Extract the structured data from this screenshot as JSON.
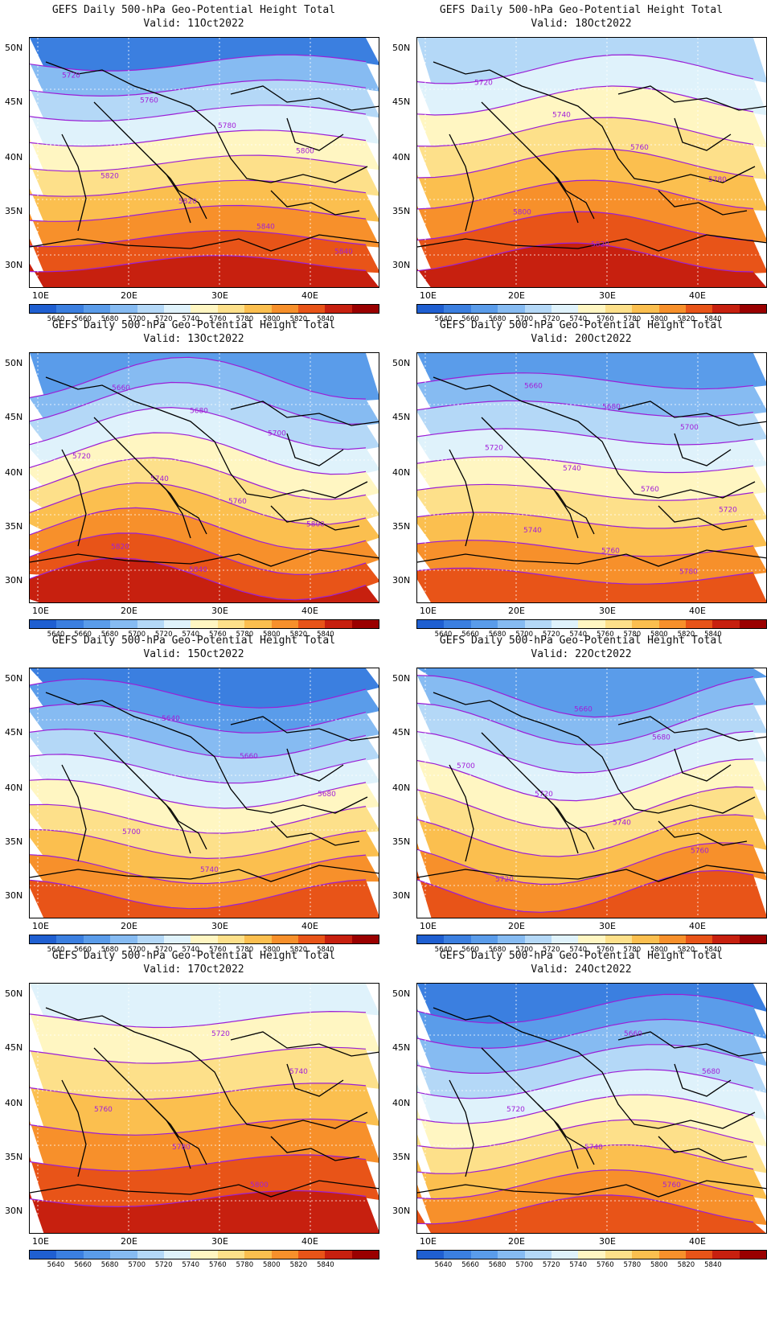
{
  "panels": [
    {
      "title": "GEFS Daily 500-hPa Geo-Potential Height Total",
      "valid": "Valid: 11Oct2022",
      "bands": [
        5640,
        5680,
        5700,
        5720,
        5740,
        5760,
        5780,
        5800,
        5820,
        5840
      ],
      "labels": [
        "5720",
        "5760",
        "5780",
        "5800",
        "5820",
        "5820",
        "5840",
        "5840"
      ]
    },
    {
      "title": "GEFS Daily 500-hPa Geo-Potential Height Total",
      "valid": "Valid: 18Oct2022",
      "bands": [
        5700,
        5720,
        5740,
        5760,
        5780,
        5800,
        5820,
        5840
      ],
      "labels": [
        "5720",
        "5740",
        "5760",
        "5780",
        "5800",
        "5820"
      ]
    },
    {
      "title": "GEFS Daily 500-hPa Geo-Potential Height Total",
      "valid": "Valid: 13Oct2022",
      "bands": [
        5660,
        5680,
        5700,
        5720,
        5740,
        5760,
        5780,
        5800,
        5820,
        5840
      ],
      "labels": [
        "5660",
        "5680",
        "5700",
        "5720",
        "5740",
        "5760",
        "5800",
        "5820",
        "5840"
      ]
    },
    {
      "title": "GEFS Daily 500-hPa Geo-Potential Height Total",
      "valid": "Valid: 20Oct2022",
      "bands": [
        5660,
        5680,
        5700,
        5720,
        5740,
        5760,
        5780,
        5800,
        5820
      ],
      "labels": [
        "5660",
        "5680",
        "5700",
        "5720",
        "5740",
        "5760",
        "5720",
        "5740",
        "5760",
        "5780"
      ]
    },
    {
      "title": "GEFS Daily 500-hPa Geo-Potential Height Total",
      "valid": "Valid: 15Oct2022",
      "bands": [
        5640,
        5660,
        5680,
        5700,
        5720,
        5740,
        5760,
        5780,
        5800,
        5820
      ],
      "labels": [
        "5640",
        "5660",
        "5680",
        "5700",
        "5740"
      ]
    },
    {
      "title": "GEFS Daily 500-hPa Geo-Potential Height Total",
      "valid": "Valid: 22Oct2022",
      "bands": [
        5660,
        5680,
        5700,
        5720,
        5740,
        5760,
        5780,
        5800,
        5820
      ],
      "labels": [
        "5660",
        "5680",
        "5700",
        "5720",
        "5740",
        "5760",
        "5720"
      ]
    },
    {
      "title": "GEFS Daily 500-hPa Geo-Potential Height Total",
      "valid": "Valid: 17Oct2022",
      "bands": [
        5720,
        5740,
        5760,
        5780,
        5800,
        5820,
        5840
      ],
      "labels": [
        "5720",
        "5740",
        "5760",
        "5780",
        "5800"
      ]
    },
    {
      "title": "GEFS Daily 500-hPa Geo-Potential Height Total",
      "valid": "Valid: 24Oct2022",
      "bands": [
        5640,
        5660,
        5680,
        5700,
        5720,
        5740,
        5760,
        5780,
        5800,
        5820
      ],
      "labels": [
        "5660",
        "5680",
        "5720",
        "5740",
        "5760"
      ]
    }
  ],
  "lat_ticks": [
    "50N",
    "45N",
    "40N",
    "35N",
    "30N"
  ],
  "lon_ticks": [
    "10E",
    "20E",
    "30E",
    "40E"
  ],
  "colorbar": {
    "labels": [
      "5640",
      "5660",
      "5680",
      "5700",
      "5720",
      "5740",
      "5760",
      "5780",
      "5800",
      "5820",
      "5840"
    ],
    "colors": [
      "#1f5fd1",
      "#3b7fe0",
      "#5a9cea",
      "#86bbf2",
      "#b4d8f7",
      "#dff2fb",
      "#fff6c2",
      "#fde08a",
      "#fbbf4f",
      "#f7902b",
      "#e85418",
      "#c7200f",
      "#9a0000"
    ]
  }
}
